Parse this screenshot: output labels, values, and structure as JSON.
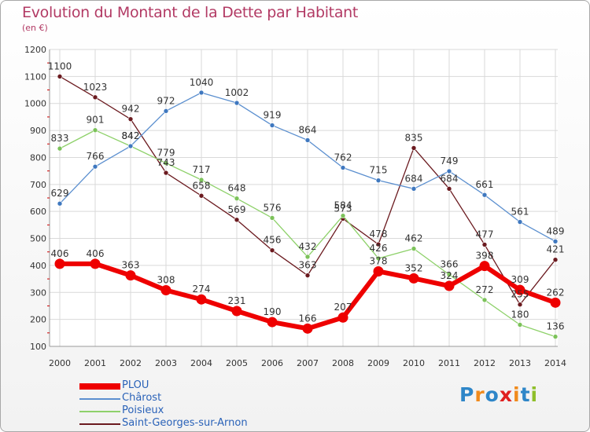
{
  "title": "Evolution du Montant de la Dette par Habitant",
  "subtitle": "(en €)",
  "logo": {
    "letters": [
      "P",
      "r",
      "o",
      "x",
      "i",
      "t",
      "i"
    ],
    "colors": [
      "#2e86c8",
      "#f08a1c",
      "#2e86c8",
      "#e02020",
      "#f08a1c",
      "#2e86c8",
      "#8fbf2a"
    ]
  },
  "chart_data": {
    "type": "line",
    "x": [
      "2000",
      "2001",
      "2002",
      "2003",
      "2004",
      "2005",
      "2006",
      "2007",
      "2008",
      "2009",
      "2010",
      "2011",
      "2012",
      "2013",
      "2014"
    ],
    "ylim": [
      100,
      1200
    ],
    "yticks": [
      100,
      200,
      300,
      400,
      500,
      600,
      700,
      800,
      900,
      1000,
      1100,
      1200
    ],
    "grid": true,
    "legend_position": "bottom-left",
    "series": [
      {
        "name": "Saint-Georges-sur-Arnon",
        "color": "#6b1a1f",
        "marker": "#6b1a1f",
        "width": 1.3,
        "values": [
          1100,
          1023,
          942,
          743,
          658,
          569,
          456,
          363,
          573,
          478,
          835,
          684,
          477,
          255,
          421
        ],
        "labels": [
          "1100",
          "1023",
          "942",
          "743",
          "658",
          "569",
          "456",
          "363",
          "573",
          "478",
          "835",
          "684",
          "477",
          "255",
          "421"
        ]
      },
      {
        "name": "Poisieux",
        "color": "#8ed16a",
        "marker": "#7cc25a",
        "width": 1.3,
        "values": [
          833,
          901,
          842,
          779,
          717,
          648,
          576,
          432,
          584,
          426,
          462,
          366,
          272,
          180,
          136
        ],
        "labels": [
          "833",
          "901",
          "842",
          "779",
          "717",
          "648",
          "576",
          "432",
          "584",
          "426",
          "462",
          "366",
          "272",
          "180",
          "136"
        ]
      },
      {
        "name": "Châros t",
        "color": "#5b8fcf",
        "marker": "#3f78bf",
        "width": 1.3,
        "values": [
          629,
          766,
          842,
          972,
          1040,
          1002,
          919,
          864,
          762,
          715,
          684,
          749,
          661,
          561,
          489
        ],
        "labels": [
          "629",
          "766",
          "842",
          "972",
          "1040",
          "1002",
          "919",
          "864",
          "762",
          "715",
          "684",
          "749",
          "661",
          "561",
          "489"
        ]
      },
      {
        "name": "PLOU",
        "color": "#ee0000",
        "marker": "#ee0000",
        "width": 6,
        "values": [
          406,
          406,
          363,
          308,
          274,
          231,
          190,
          166,
          207,
          378,
          352,
          324,
          398,
          309,
          262
        ],
        "labels": [
          "406",
          "406",
          "363",
          "308",
          "274",
          "231",
          "190",
          "166",
          "207",
          "378",
          "352",
          "324",
          "398",
          "309",
          "262"
        ]
      }
    ]
  },
  "legend": [
    {
      "name": "PLOU",
      "color": "#ee0000",
      "thickness": 8
    },
    {
      "name": "Chârost",
      "color": "#5b8fcf",
      "thickness": 2
    },
    {
      "name": "Poisieux",
      "color": "#8ed16a",
      "thickness": 2
    },
    {
      "name": "Saint-Georges-sur-Arnon",
      "color": "#6b1a1f",
      "thickness": 2
    }
  ]
}
